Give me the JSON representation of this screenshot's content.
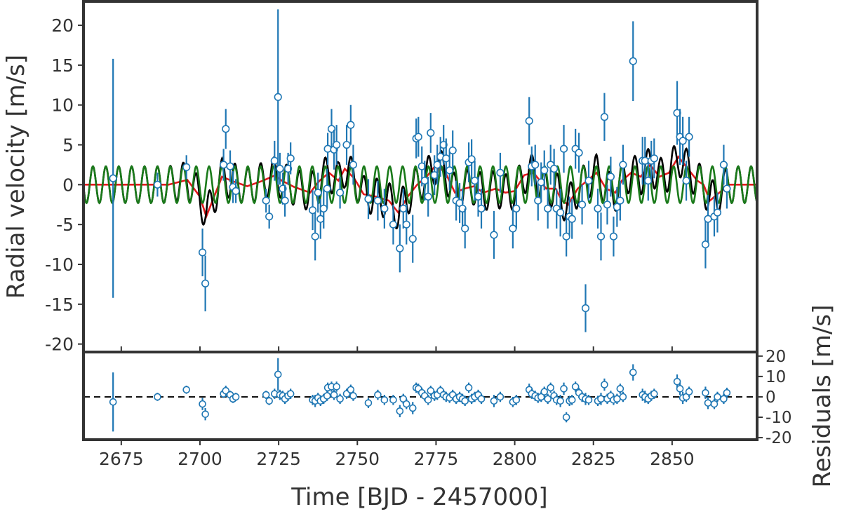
{
  "chart_data": [
    {
      "type": "scatter",
      "panel": "radial-velocity",
      "xlabel": "",
      "ylabel": "Radial velocity [m/s]",
      "xlim": [
        2663,
        2877
      ],
      "ylim": [
        -21,
        23
      ],
      "xticks": [
        2675,
        2700,
        2725,
        2750,
        2775,
        2800,
        2825,
        2850
      ],
      "xtick_labels": [
        "",
        "",
        "",
        "",
        "",
        "",
        "",
        ""
      ],
      "yticks": [
        -20,
        -15,
        -10,
        -5,
        0,
        5,
        10,
        15,
        20
      ],
      "ytick_labels": [
        "-20",
        "-15",
        "-10",
        "-5",
        "0",
        "5",
        "10",
        "15",
        "20"
      ],
      "grid": false,
      "colors": {
        "points": "#1f77b4",
        "marker_fill": "#ffffff",
        "total_model": "#000000",
        "planet_model": "#1a7a1a",
        "gp_model": "#e31a1c",
        "frame": "#333333"
      },
      "series": [
        {
          "type": "errorbar-scatter",
          "x": [
            2672.4,
            2686.5,
            2695.7,
            2700.8,
            2701.7,
            2707.5,
            2708.2,
            2709.6,
            2710.5,
            2711.4,
            2721.0,
            2722.0,
            2723.7,
            2724.8,
            2725.4,
            2726.3,
            2727.0,
            2728.0,
            2728.8,
            2735.8,
            2736.6,
            2737.5,
            2738.3,
            2739.3,
            2740.4,
            2740.6,
            2741.8,
            2742.6,
            2743.4,
            2744.5,
            2746.6,
            2747.9,
            2748.7,
            2753.5,
            2756.5,
            2758.6,
            2761.4,
            2763.5,
            2764.6,
            2765.6,
            2767.6,
            2768.7,
            2769.4,
            2770.5,
            2771.4,
            2772.5,
            2773.3,
            2774.5,
            2775.4,
            2776.4,
            2777.4,
            2778.2,
            2779.3,
            2780.3,
            2781.4,
            2782.5,
            2783.4,
            2784.2,
            2785.4,
            2786.3,
            2787.3,
            2788.4,
            2789.4,
            2793.4,
            2795.4,
            2799.4,
            2800.5,
            2804.6,
            2805.4,
            2806.5,
            2807.4,
            2808.4,
            2809.4,
            2810.5,
            2811.4,
            2812.5,
            2813.3,
            2814.5,
            2815.6,
            2816.4,
            2817.4,
            2818.2,
            2819.3,
            2820.4,
            2821.4,
            2822.5,
            2823.5,
            2826.4,
            2827.4,
            2828.5,
            2829.4,
            2830.5,
            2831.4,
            2832.5,
            2833.5,
            2834.4,
            2837.6,
            2840.6,
            2841.4,
            2842.4,
            2843.4,
            2844.3,
            2851.6,
            2852.5,
            2853.4,
            2854.5,
            2855.4,
            2860.6,
            2861.4,
            2863.4,
            2864.4,
            2866.4,
            2867.4
          ],
          "y": [
            0.8,
            0.0,
            2.2,
            -8.5,
            -12.4,
            2.5,
            7.0,
            2.3,
            -0.3,
            -0.8,
            -2.0,
            -4.0,
            3.0,
            11.0,
            2.0,
            -0.5,
            -2.0,
            2.0,
            3.3,
            -3.2,
            -6.5,
            -1.0,
            -4.3,
            -3.0,
            -0.5,
            4.5,
            7.0,
            4.4,
            5.0,
            -1.0,
            5.0,
            7.5,
            2.5,
            -1.8,
            -2.0,
            -3.0,
            -5.0,
            -8.0,
            -3.0,
            -5.0,
            -6.8,
            5.8,
            6.0,
            2.3,
            0.5,
            -1.5,
            6.5,
            1.2,
            2.5,
            3.5,
            5.0,
            3.3,
            1.8,
            4.3,
            -2.0,
            -2.3,
            -3.0,
            -5.5,
            2.8,
            3.2,
            0.5,
            -1.5,
            -3.0,
            -6.3,
            1.5,
            -5.5,
            -3.0,
            8.0,
            2.3,
            2.5,
            -2.0,
            0.3,
            1.8,
            -3.0,
            2.5,
            2.0,
            -3.0,
            -3.5,
            4.5,
            -6.5,
            -4.0,
            -4.3,
            4.5,
            4.0,
            -2.5,
            -15.5,
            0.5,
            -3.0,
            -6.5,
            8.5,
            -2.5,
            1.0,
            -6.5,
            -2.8,
            -2.0,
            2.5,
            15.5,
            3.0,
            3.0,
            0.5,
            3.0,
            3.3,
            9.0,
            6.0,
            5.5,
            0.5,
            6.0,
            -7.5,
            -4.3,
            -4.0,
            -3.5,
            2.5,
            -0.5
          ],
          "yerr": [
            15.0,
            1.5,
            1.5,
            3.0,
            3.5,
            2.0,
            2.5,
            2.0,
            2.0,
            1.5,
            1.5,
            1.5,
            2.5,
            11.0,
            2.0,
            2.0,
            2.0,
            2.0,
            2.0,
            2.5,
            3.0,
            2.5,
            2.5,
            2.5,
            2.5,
            2.0,
            2.5,
            2.5,
            2.5,
            2.0,
            2.5,
            2.5,
            2.5,
            2.5,
            2.5,
            2.5,
            2.5,
            3.0,
            2.5,
            2.5,
            3.0,
            2.5,
            2.5,
            2.5,
            2.5,
            2.5,
            2.5,
            2.5,
            2.5,
            2.5,
            2.5,
            2.5,
            2.5,
            2.5,
            2.5,
            2.5,
            2.5,
            2.5,
            2.5,
            2.5,
            2.5,
            2.5,
            2.5,
            3.0,
            2.5,
            2.5,
            2.5,
            3.0,
            2.5,
            2.5,
            2.5,
            2.5,
            2.5,
            2.5,
            2.5,
            2.5,
            2.5,
            3.0,
            3.0,
            2.5,
            2.5,
            2.5,
            2.5,
            2.5,
            2.5,
            3.0,
            2.5,
            2.5,
            3.0,
            3.0,
            2.5,
            2.5,
            2.5,
            2.5,
            2.5,
            2.5,
            5.0,
            3.0,
            3.0,
            2.5,
            2.5,
            2.5,
            4.0,
            3.5,
            3.0,
            2.5,
            2.5,
            3.0,
            3.0,
            2.5,
            2.5,
            2.5,
            2.5
          ]
        },
        {
          "type": "line",
          "component": "planet",
          "color": "#1a7a1a",
          "amplitude": 2.3,
          "period": 4.1,
          "phase_x": 2666.0
        },
        {
          "type": "line",
          "component": "gp",
          "color": "#e31a1c",
          "x": [
            2663,
            2690,
            2696,
            2700,
            2702,
            2705,
            2707,
            2710,
            2715,
            2720,
            2724,
            2726,
            2730,
            2735,
            2738,
            2741,
            2744,
            2746,
            2749,
            2752,
            2756,
            2760,
            2763,
            2766,
            2769,
            2772,
            2775,
            2778,
            2781,
            2784,
            2787,
            2790,
            2794,
            2797,
            2800,
            2803,
            2806,
            2810,
            2813,
            2815,
            2817,
            2820,
            2823,
            2826,
            2829,
            2832,
            2834,
            2837,
            2840,
            2843,
            2846,
            2849,
            2852,
            2855,
            2858,
            2860,
            2862,
            2865,
            2868,
            2877
          ],
          "y": [
            0,
            0,
            0.6,
            -1.5,
            -4.0,
            -1.0,
            1.0,
            0.5,
            -0.2,
            0.5,
            1.2,
            0.5,
            -0.3,
            -1.0,
            0.5,
            1.5,
            0.5,
            2.0,
            0.8,
            -1.2,
            -1.5,
            -2.0,
            -3.5,
            -1.5,
            0.0,
            1.0,
            2.5,
            1.5,
            -1.0,
            -0.5,
            -0.2,
            -1.0,
            -0.5,
            -1.0,
            -0.8,
            1.2,
            1.5,
            -0.5,
            -0.5,
            -2.0,
            -2.5,
            -0.5,
            0.5,
            1.5,
            -0.5,
            -1.0,
            0.5,
            1.5,
            1.0,
            2.5,
            1.0,
            1.5,
            3.5,
            2.0,
            0.5,
            0.0,
            -2.0,
            -1.0,
            0.0,
            0.0
          ]
        },
        {
          "type": "line",
          "component": "total",
          "color": "#000000",
          "definition": "planet + gp"
        }
      ]
    },
    {
      "type": "scatter",
      "panel": "residuals",
      "xlabel": "Time [BJD - 2457000]",
      "ylabel": "Residuals [m/s]",
      "xlim": [
        2663,
        2877
      ],
      "ylim": [
        -21,
        22
      ],
      "xticks": [
        2675,
        2700,
        2725,
        2750,
        2775,
        2800,
        2825,
        2850
      ],
      "xtick_labels": [
        "2675",
        "2700",
        "2725",
        "2750",
        "2775",
        "2800",
        "2825",
        "2850"
      ],
      "yticks": [
        -20,
        -10,
        0,
        10,
        20
      ],
      "ytick_labels": [
        "-20",
        "-10",
        "0",
        "10",
        "20"
      ],
      "yaxis_side": "right",
      "zero_line": "dashed",
      "grid": false,
      "series": [
        {
          "type": "errorbar-scatter",
          "x": [
            2672.4,
            2686.5,
            2695.7,
            2700.8,
            2701.7,
            2707.5,
            2708.2,
            2709.6,
            2710.5,
            2711.4,
            2721.0,
            2722.0,
            2723.7,
            2724.8,
            2725.4,
            2726.3,
            2727.0,
            2728.0,
            2728.8,
            2735.8,
            2736.6,
            2737.5,
            2738.3,
            2739.3,
            2740.4,
            2740.6,
            2741.8,
            2742.6,
            2743.4,
            2744.5,
            2746.6,
            2747.9,
            2748.7,
            2753.5,
            2756.5,
            2758.6,
            2761.4,
            2763.5,
            2764.6,
            2765.6,
            2767.6,
            2768.7,
            2769.4,
            2770.5,
            2771.4,
            2772.5,
            2773.3,
            2774.5,
            2775.4,
            2776.4,
            2777.4,
            2778.2,
            2779.3,
            2780.3,
            2781.4,
            2782.5,
            2783.4,
            2784.2,
            2785.4,
            2786.3,
            2787.3,
            2788.4,
            2789.4,
            2793.4,
            2795.4,
            2799.4,
            2800.5,
            2804.6,
            2805.4,
            2806.5,
            2807.4,
            2808.4,
            2809.4,
            2810.5,
            2811.4,
            2812.5,
            2813.3,
            2814.5,
            2815.6,
            2816.4,
            2817.4,
            2818.2,
            2819.3,
            2820.4,
            2821.4,
            2822.5,
            2823.5,
            2826.4,
            2827.4,
            2828.5,
            2829.4,
            2830.5,
            2831.4,
            2832.5,
            2833.5,
            2834.4,
            2837.6,
            2840.6,
            2841.4,
            2842.4,
            2843.4,
            2844.3,
            2851.6,
            2852.5,
            2853.4,
            2854.5,
            2855.4,
            2860.6,
            2861.4,
            2863.4,
            2864.4,
            2866.4,
            2867.4
          ],
          "y": [
            -2.5,
            0.0,
            3.5,
            -3.5,
            -8.5,
            1.5,
            3.0,
            1.0,
            -1.0,
            0.0,
            1.0,
            -2.0,
            1.5,
            11.0,
            1.0,
            0.5,
            -1.0,
            0.5,
            1.5,
            -1.5,
            -2.0,
            -0.5,
            -2.0,
            -1.0,
            0.5,
            4.5,
            5.0,
            1.0,
            5.0,
            -1.0,
            1.5,
            3.5,
            0.5,
            -3.0,
            1.0,
            -1.5,
            -1.5,
            -7.0,
            -1.0,
            -3.5,
            -5.5,
            4.5,
            4.0,
            2.0,
            0.5,
            -1.5,
            3.0,
            0.5,
            1.0,
            3.0,
            1.0,
            0.0,
            -0.5,
            1.0,
            -1.0,
            0.0,
            -1.0,
            -2.0,
            4.5,
            -1.0,
            0.0,
            1.0,
            -1.0,
            -2.0,
            0.0,
            -2.5,
            -1.5,
            3.5,
            1.5,
            0.5,
            -0.5,
            0.0,
            2.5,
            -1.0,
            4.5,
            0.5,
            -1.5,
            -2.0,
            4.0,
            -10.0,
            -2.0,
            -1.5,
            5.0,
            2.0,
            0.0,
            -1.0,
            -1.5,
            -2.0,
            -1.0,
            6.0,
            -1.0,
            0.5,
            -1.5,
            -1.0,
            4.0,
            0.0,
            12.0,
            1.0,
            0.0,
            -1.0,
            0.5,
            1.5,
            7.5,
            4.0,
            -0.5,
            0.0,
            2.5,
            2.0,
            -3.0,
            -3.5,
            0.0,
            -1.0,
            2.0
          ],
          "yerr": [
            14.5,
            2.0,
            2.0,
            3.0,
            3.0,
            2.0,
            2.5,
            2.0,
            2.0,
            2.0,
            2.0,
            2.0,
            2.5,
            8.0,
            2.5,
            2.5,
            2.5,
            2.5,
            2.5,
            2.5,
            3.0,
            2.5,
            2.5,
            2.5,
            2.5,
            2.5,
            2.5,
            2.5,
            2.5,
            2.5,
            2.5,
            2.5,
            2.5,
            2.5,
            2.5,
            2.5,
            2.5,
            3.0,
            2.5,
            2.5,
            3.0,
            2.5,
            2.5,
            2.5,
            2.5,
            2.5,
            2.5,
            2.5,
            2.5,
            2.5,
            2.5,
            2.5,
            2.5,
            2.5,
            2.5,
            2.5,
            2.5,
            2.5,
            2.5,
            2.5,
            2.5,
            2.5,
            2.5,
            3.0,
            2.5,
            2.5,
            2.5,
            3.0,
            2.5,
            2.5,
            2.5,
            2.5,
            2.5,
            2.5,
            2.5,
            2.5,
            2.5,
            3.0,
            3.0,
            2.5,
            2.5,
            2.5,
            2.5,
            2.5,
            2.5,
            3.0,
            2.5,
            2.5,
            3.0,
            3.0,
            2.5,
            2.5,
            2.5,
            2.5,
            2.5,
            2.5,
            4.0,
            3.0,
            3.0,
            2.5,
            2.5,
            2.5,
            3.5,
            3.0,
            3.0,
            2.5,
            2.5,
            3.0,
            3.0,
            2.5,
            2.5,
            2.5,
            2.5
          ]
        }
      ]
    }
  ]
}
